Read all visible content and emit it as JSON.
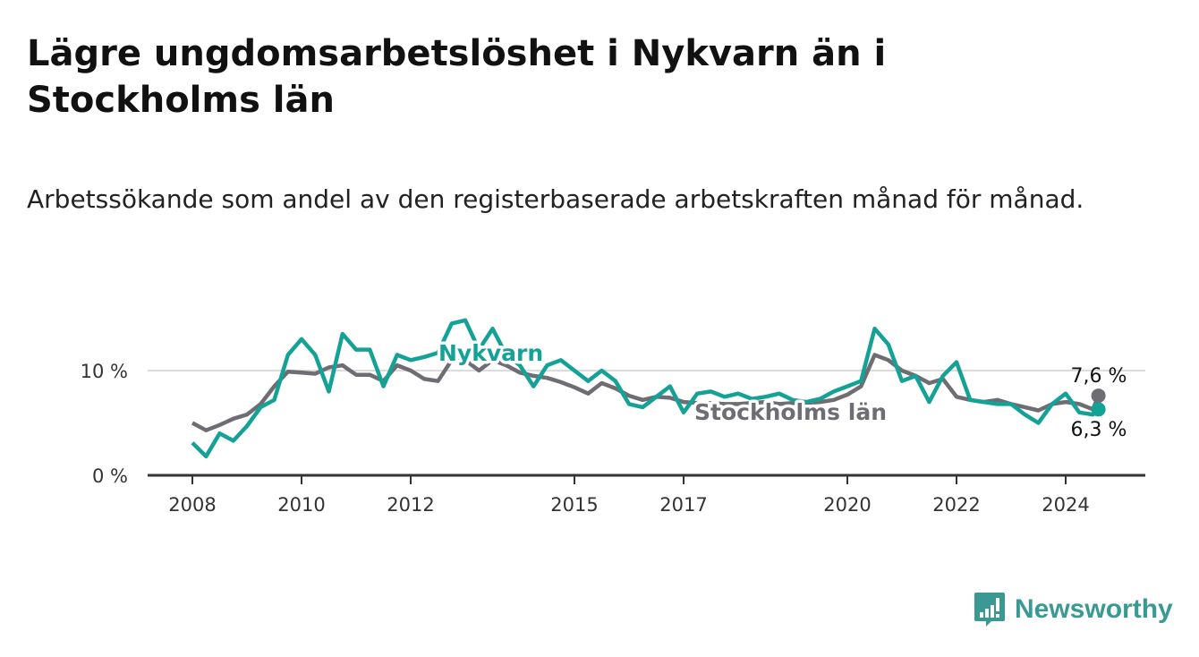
{
  "title": "Lägre ungdomsarbetslöshet i Nykvarn än i Stockholms län",
  "subtitle": "Arbetssökande som andel av den registerbaserade arbetskraften månad för månad.",
  "brand": "Newsworthy",
  "colors": {
    "nykvarn": "#14a297",
    "stockholm": "#6e6d73",
    "grid": "#dcdcdc",
    "axis": "#333333",
    "brand": "#3a9a93"
  },
  "chart_data": {
    "type": "line",
    "xlabel": "",
    "ylabel": "",
    "xlim": [
      2007.3,
      2025.6
    ],
    "ylim": [
      0,
      15
    ],
    "grid": true,
    "x_ticks": [
      2008,
      2010,
      2012,
      2015,
      2017,
      2020,
      2022,
      2024
    ],
    "x_tick_labels": [
      "2008",
      "2010",
      "2012",
      "2015",
      "2017",
      "2020",
      "2022",
      "2024"
    ],
    "y_ticks": [
      0,
      10
    ],
    "y_tick_labels": [
      "0 %",
      "10 %"
    ],
    "x": [
      2008,
      2008.25,
      2008.5,
      2008.75,
      2009,
      2009.25,
      2009.5,
      2009.75,
      2010,
      2010.25,
      2010.5,
      2010.75,
      2011,
      2011.25,
      2011.5,
      2011.75,
      2012,
      2012.25,
      2012.5,
      2012.75,
      2013,
      2013.25,
      2013.5,
      2013.75,
      2014,
      2014.25,
      2014.5,
      2014.75,
      2015,
      2015.25,
      2015.5,
      2015.75,
      2016,
      2016.25,
      2016.5,
      2016.75,
      2017,
      2017.25,
      2017.5,
      2017.75,
      2018,
      2018.25,
      2018.5,
      2018.75,
      2019,
      2019.25,
      2019.5,
      2019.75,
      2020,
      2020.25,
      2020.5,
      2020.75,
      2021,
      2021.25,
      2021.5,
      2021.75,
      2022,
      2022.25,
      2022.5,
      2022.75,
      2023,
      2023.25,
      2023.5,
      2023.75,
      2024,
      2024.25,
      2024.5,
      2024.6
    ],
    "series": [
      {
        "name": "Nykvarn",
        "end_label": "6,3 %",
        "values": [
          3.1,
          1.8,
          4.0,
          3.3,
          4.7,
          6.5,
          7.2,
          11.5,
          13.0,
          11.5,
          8.0,
          13.5,
          12.0,
          12.0,
          8.5,
          11.5,
          11.0,
          11.3,
          11.7,
          14.5,
          14.8,
          12.0,
          14.0,
          11.5,
          10.5,
          8.5,
          10.5,
          11.0,
          10.0,
          9.0,
          10.0,
          9.0,
          6.8,
          6.5,
          7.5,
          8.5,
          6.0,
          7.8,
          8.0,
          7.5,
          7.8,
          7.3,
          7.5,
          7.8,
          7.2,
          7.0,
          7.3,
          8.0,
          8.5,
          9.0,
          14.0,
          12.5,
          9.0,
          9.5,
          7.0,
          9.5,
          10.8,
          7.2,
          7.0,
          6.8,
          6.8,
          5.8,
          5.0,
          6.8,
          7.8,
          6.0,
          5.8,
          6.3
        ]
      },
      {
        "name": "Stockholms län",
        "end_label": "7,6 %",
        "values": [
          5.0,
          4.3,
          4.8,
          5.4,
          5.8,
          6.8,
          8.5,
          9.9,
          9.8,
          9.7,
          10.3,
          10.5,
          9.6,
          9.6,
          9.0,
          10.5,
          10.0,
          9.2,
          9.0,
          11.0,
          11.0,
          10.0,
          11.0,
          10.5,
          9.8,
          9.5,
          9.3,
          8.9,
          8.4,
          7.8,
          8.8,
          8.3,
          7.6,
          7.2,
          7.5,
          7.4,
          7.0,
          6.9,
          6.9,
          6.8,
          6.8,
          6.9,
          7.0,
          6.8,
          6.9,
          6.9,
          7.0,
          7.2,
          7.7,
          8.5,
          11.5,
          11.0,
          10.0,
          9.5,
          8.8,
          9.2,
          7.5,
          7.2,
          7.0,
          7.2,
          6.8,
          6.5,
          6.2,
          6.8,
          7.0,
          6.8,
          6.3,
          7.6
        ]
      }
    ]
  }
}
